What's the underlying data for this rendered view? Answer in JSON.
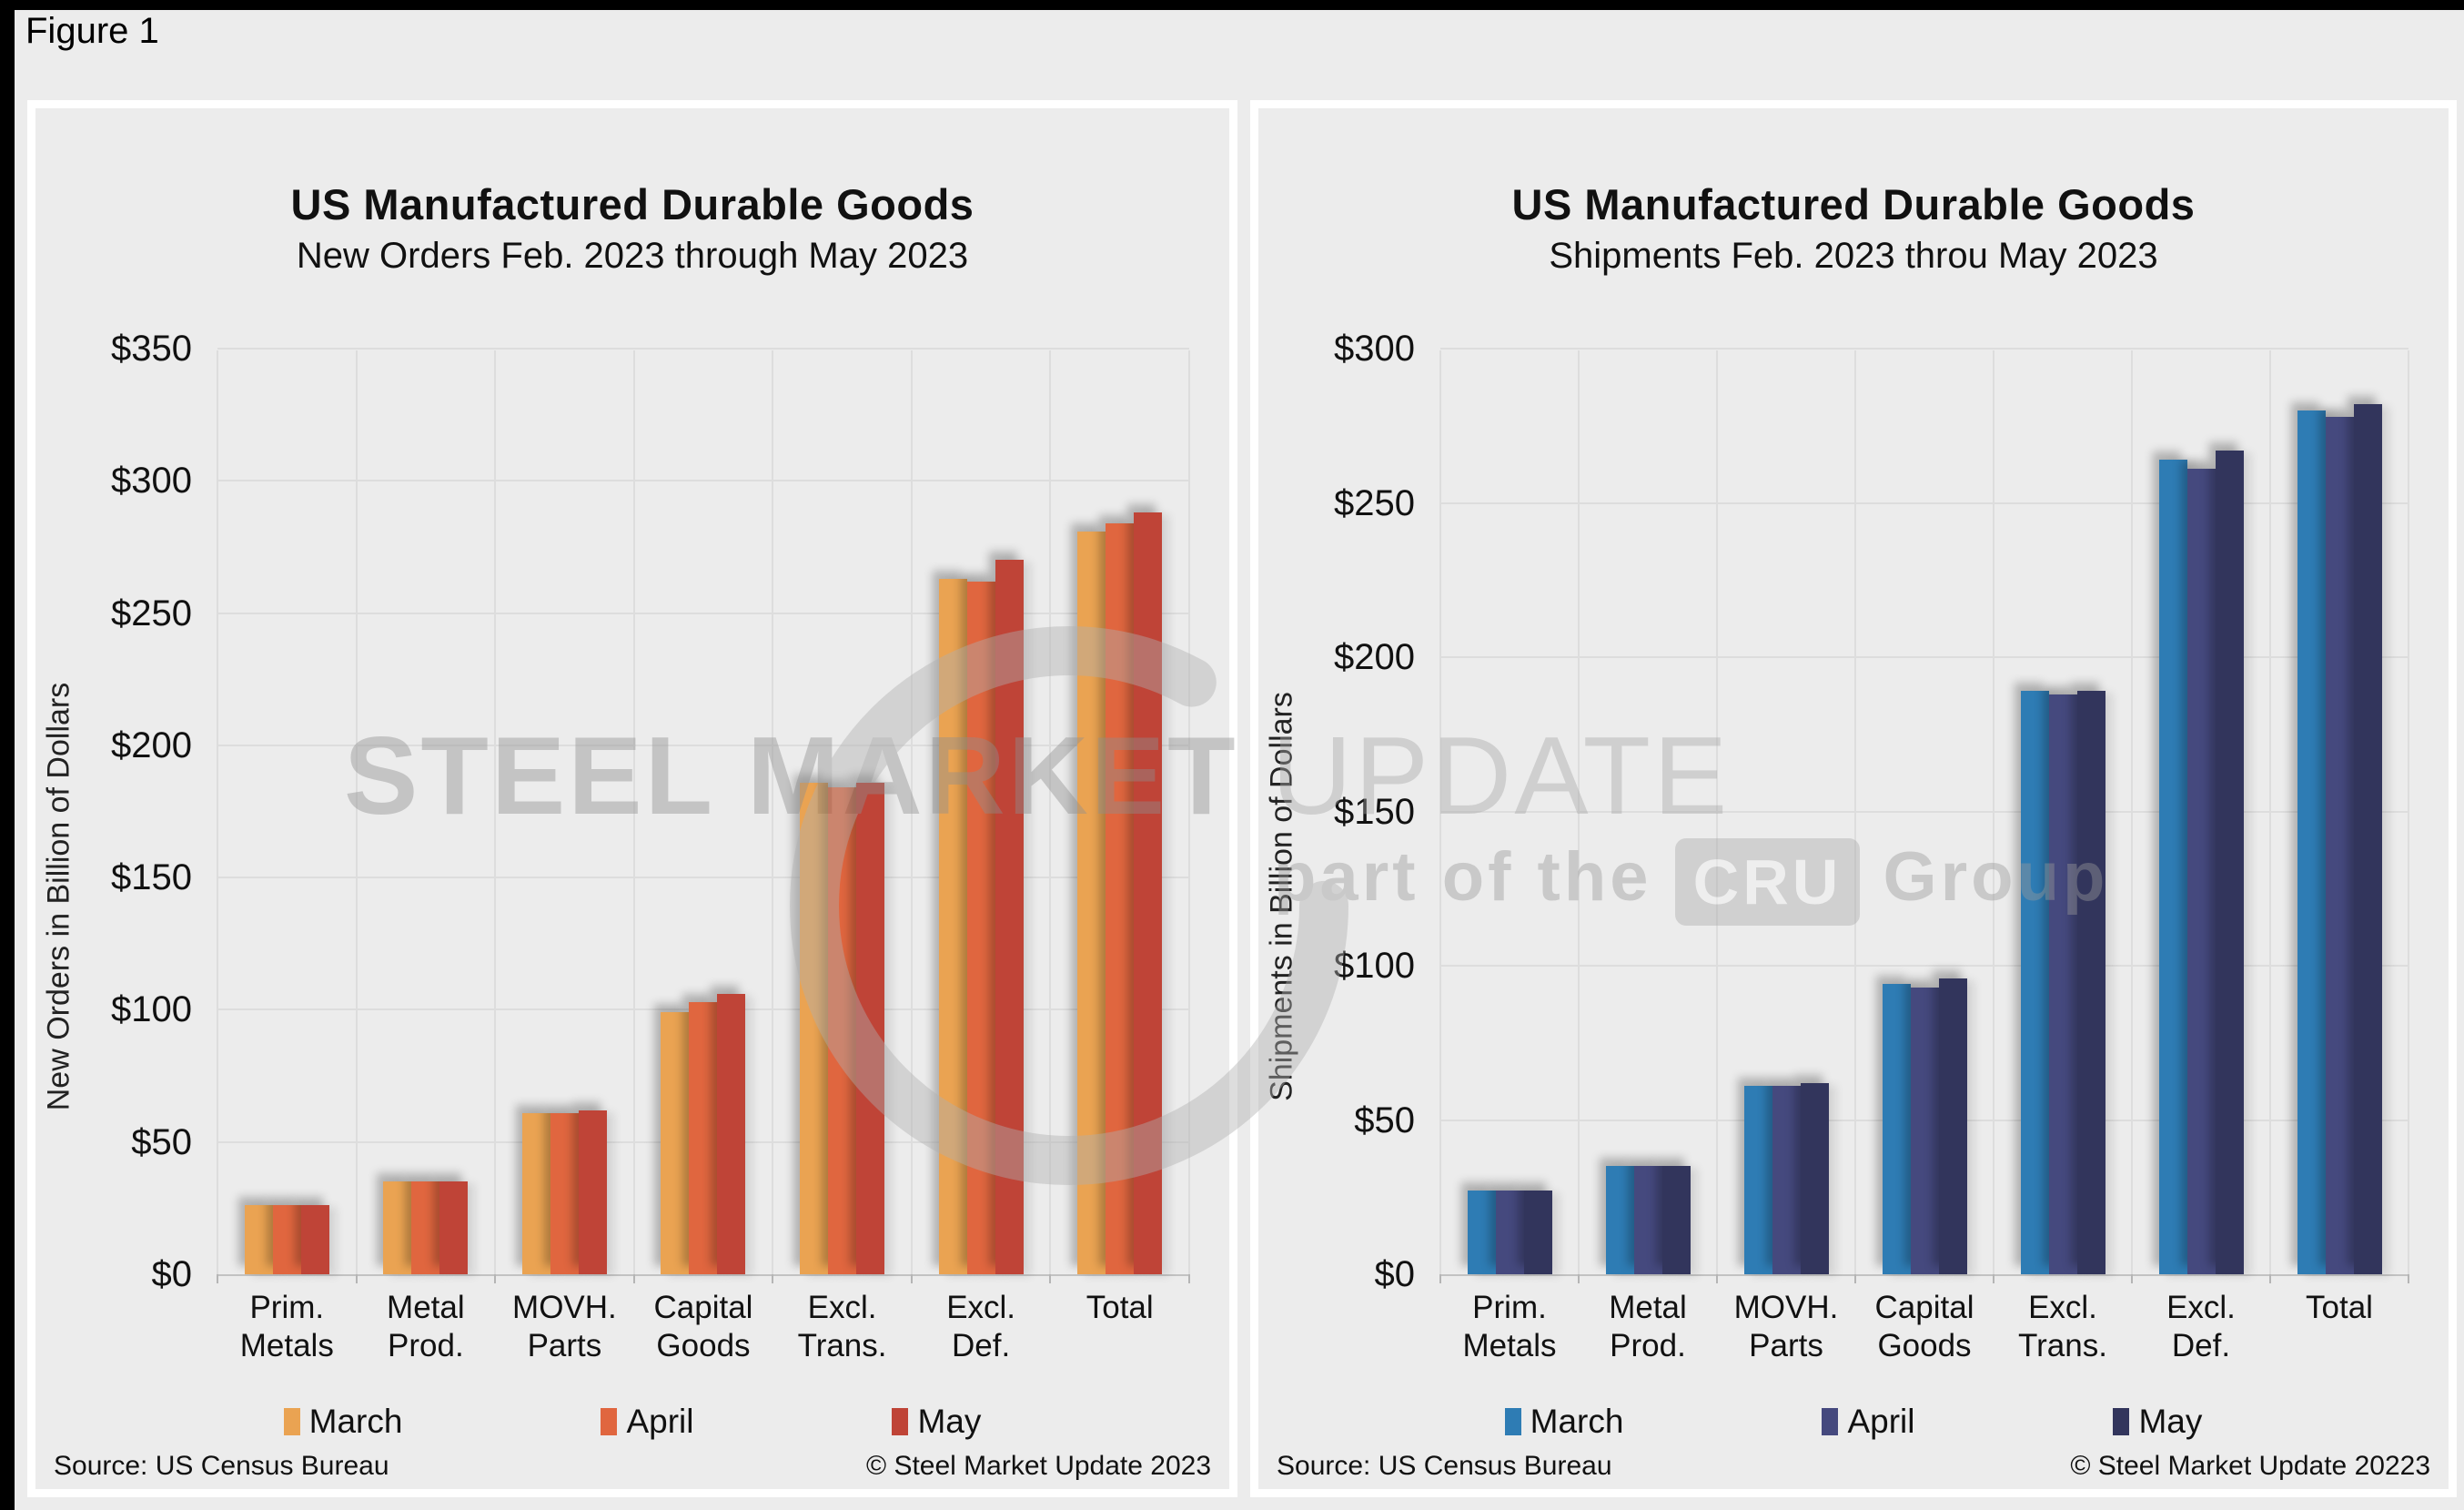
{
  "page": {
    "figure_label": "Figure 1",
    "colors": {
      "frame": "#000000",
      "background": "#ececec",
      "panel_border": "#ffffff",
      "gridline": "#dddddd"
    }
  },
  "watermark": {
    "brand_bold": "STEEL MARKET",
    "brand_light": "UPDATE",
    "tagline_prefix": "part of the",
    "badge": "CRU",
    "tagline_suffix": "Group"
  },
  "chart_data": [
    {
      "type": "bar",
      "title": "US Manufactured Durable Goods",
      "subtitle": "New Orders Feb. 2023 through May 2023",
      "ylabel": "New Orders in Billion of Dollars",
      "xlabel": "",
      "ylim": [
        0,
        350
      ],
      "y_step": 50,
      "y_tick_prefix": "$",
      "grid": true,
      "legend_position": "bottom",
      "categories": [
        "Prim. Metals",
        "Metal Prod.",
        "MOVH. Parts",
        "Capital Goods",
        "Excl. Trans.",
        "Excl. Def.",
        "Total"
      ],
      "category_label_lines": [
        [
          "Prim.",
          "Metals"
        ],
        [
          "Metal",
          "Prod."
        ],
        [
          "MOVH.",
          "Parts"
        ],
        [
          "Capital",
          "Goods"
        ],
        [
          "Excl.",
          "Trans."
        ],
        [
          "Excl.",
          "Def."
        ],
        [
          "Total"
        ]
      ],
      "series": [
        {
          "name": "March",
          "color": "#EAA352",
          "values": [
            26,
            35,
            61,
            99,
            186,
            263,
            281
          ]
        },
        {
          "name": "April",
          "color": "#E0663F",
          "values": [
            26,
            35,
            61,
            103,
            184,
            262,
            284
          ]
        },
        {
          "name": "May",
          "color": "#BF4437",
          "values": [
            26,
            35,
            62,
            106,
            186,
            270,
            288
          ]
        }
      ],
      "source": "Source: US Census Bureau",
      "copyright": "© Steel Market Update 2023"
    },
    {
      "type": "bar",
      "title": "US Manufactured Durable Goods",
      "subtitle": "Shipments Feb. 2023 throu May 2023",
      "ylabel": "Shipments in Billion of Dollars",
      "xlabel": "",
      "ylim": [
        0,
        300
      ],
      "y_step": 50,
      "y_tick_prefix": "$",
      "grid": true,
      "legend_position": "bottom",
      "categories": [
        "Prim. Metals",
        "Metal Prod.",
        "MOVH. Parts",
        "Capital Goods",
        "Excl. Trans.",
        "Excl. Def.",
        "Total"
      ],
      "category_label_lines": [
        [
          "Prim.",
          "Metals"
        ],
        [
          "Metal",
          "Prod."
        ],
        [
          "MOVH.",
          "Parts"
        ],
        [
          "Capital",
          "Goods"
        ],
        [
          "Excl.",
          "Trans."
        ],
        [
          "Excl.",
          "Def."
        ],
        [
          "Total"
        ]
      ],
      "series": [
        {
          "name": "March",
          "color": "#2E7CB4",
          "values": [
            27,
            35,
            61,
            94,
            189,
            264,
            280
          ]
        },
        {
          "name": "April",
          "color": "#45497E",
          "values": [
            27,
            35,
            61,
            93,
            188,
            261,
            278
          ]
        },
        {
          "name": "May",
          "color": "#32355C",
          "values": [
            27,
            35,
            62,
            96,
            189,
            267,
            282
          ]
        }
      ],
      "source": "Source: US Census Bureau",
      "copyright": "© Steel Market Update 20223"
    }
  ]
}
